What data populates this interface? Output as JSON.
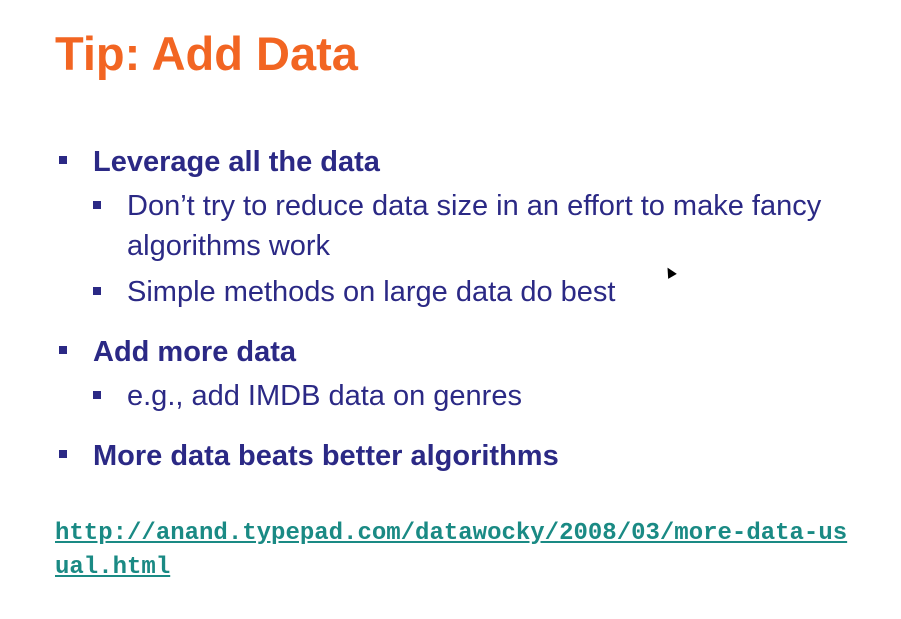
{
  "slide": {
    "title": "Tip: Add Data",
    "bullets": [
      {
        "text": "Leverage all the data",
        "sub": [
          "Don’t try to reduce data size in an effort to make fancy algorithms work",
          "Simple methods on large data do best"
        ]
      },
      {
        "text": "Add more data",
        "sub": [
          "e.g., add IMDB data on genres"
        ]
      },
      {
        "text": "More data beats better algorithms",
        "sub": []
      }
    ],
    "link": "http://anand.typepad.com/datawocky/2008/03/more-data-usual.html"
  },
  "colors": {
    "title": "#f26522",
    "body": "#2b2985",
    "link": "#1a8a84"
  }
}
